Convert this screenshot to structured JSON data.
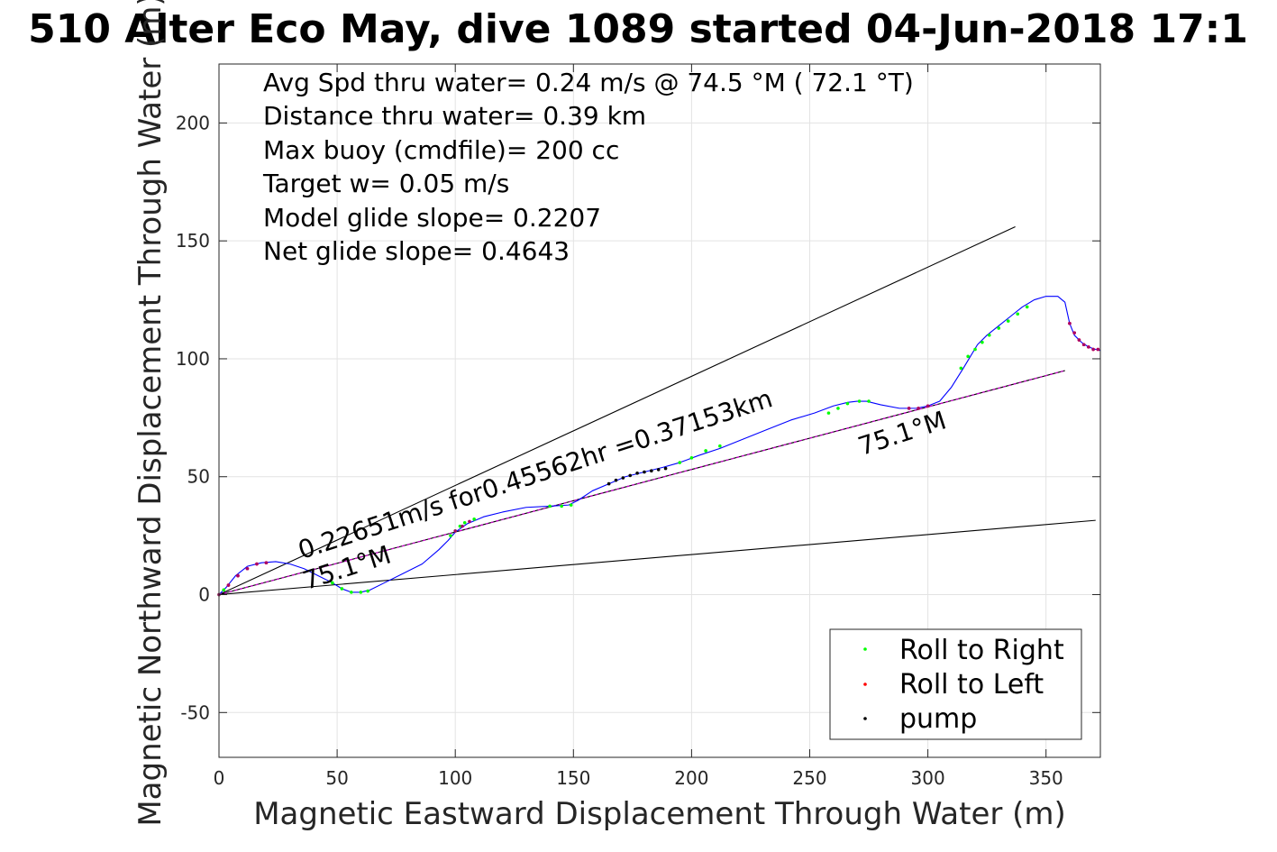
{
  "chart_data": {
    "type": "line",
    "title": "510 Alter Eco May, dive 1089 started 04-Jun-2018 17:1",
    "xlabel": "Magnetic Eastward Displacement Through Water (m)",
    "ylabel": "Magnetic Northward Displacement Through Water (m)",
    "xlim": [
      0,
      373
    ],
    "ylim": [
      -69,
      225
    ],
    "xticks": [
      0,
      50,
      100,
      150,
      200,
      250,
      300,
      350
    ],
    "yticks": [
      -50,
      0,
      50,
      100,
      150,
      200
    ],
    "grid": true,
    "info_lines": [
      "Avg Spd thru water=  0.24 m/s @  74.5 °M ( 72.1 °T)",
      "Distance thru water=  0.39 km",
      "Max buoy (cmdfile)= 200 cc",
      "Target w= 0.05 m/s",
      "Model glide slope= 0.2207",
      "Net glide slope= 0.4643"
    ],
    "annotations": [
      {
        "text": "0.22651m/s for0.45562hr =0.37153km",
        "x": 35,
        "y": 15,
        "rotation_deg": -18
      },
      {
        "text": "75.1°M",
        "x": 37,
        "y": 2,
        "rotation_deg": -18
      },
      {
        "text": "75.1°M",
        "x": 272,
        "y": 59,
        "rotation_deg": -18
      }
    ],
    "reference_lines": [
      {
        "name": "upper bound",
        "x": [
          0,
          337
        ],
        "y": [
          0,
          156
        ],
        "color": "#000000"
      },
      {
        "name": "lower bound",
        "x": [
          0,
          371
        ],
        "y": [
          0,
          31.5
        ],
        "color": "#000000"
      },
      {
        "name": "heading",
        "x": [
          0,
          358
        ],
        "y": [
          0,
          95
        ],
        "color": "#000000"
      },
      {
        "name": "heading overlay",
        "x": [
          0,
          358
        ],
        "y": [
          0,
          95
        ],
        "color": "#cc00cc"
      }
    ],
    "track": {
      "color": "#0000ff",
      "x": [
        0,
        3,
        7,
        12,
        18,
        24,
        30,
        36,
        42,
        48,
        52,
        56,
        60,
        64,
        70,
        78,
        86,
        93,
        97,
        100,
        105,
        112,
        120,
        130,
        140,
        148,
        152,
        158,
        165,
        172,
        180,
        188,
        195,
        203,
        212,
        222,
        232,
        242,
        252,
        260,
        266,
        270,
        274,
        280,
        288,
        295,
        300,
        305,
        310,
        315,
        318,
        321,
        325,
        330,
        335,
        340,
        345,
        350,
        355,
        358,
        360,
        362,
        365,
        368,
        371,
        373
      ],
      "y": [
        0,
        3,
        8,
        12,
        13.5,
        14,
        13,
        11,
        8,
        5,
        2.5,
        1,
        1,
        2,
        5,
        9,
        13,
        19,
        23,
        26.5,
        30,
        33,
        35,
        37,
        37.5,
        38,
        40,
        44,
        47,
        50,
        52,
        54,
        56,
        59,
        62,
        66,
        70,
        74,
        77,
        80,
        81.5,
        82,
        82,
        80.5,
        79,
        79,
        80,
        82,
        88,
        96,
        101,
        106,
        110,
        114,
        118,
        122,
        125,
        126.5,
        126.5,
        124,
        115,
        110,
        107,
        105,
        104,
        103.5
      ]
    },
    "series": [
      {
        "name": "Roll to Right",
        "color": "#00ff00",
        "x": [
          0,
          2,
          48,
          52,
          56,
          60,
          63,
          98,
          100,
          102,
          104,
          108,
          140,
          145,
          149,
          195,
          200,
          206,
          212,
          258,
          262,
          266,
          271,
          275,
          314,
          317,
          320,
          323,
          326,
          330,
          334,
          338,
          342
        ],
        "y": [
          0,
          2,
          5,
          2.5,
          1,
          1,
          1.5,
          25,
          27,
          29,
          30.5,
          32,
          37.5,
          37.5,
          38,
          56,
          58,
          61,
          63,
          77,
          79,
          81,
          82,
          82,
          96,
          101,
          104,
          107,
          110,
          113,
          116,
          119,
          122
        ]
      },
      {
        "name": "Roll to Left",
        "color": "#ff0000",
        "x": [
          4,
          8,
          12,
          16,
          20,
          360,
          362,
          364,
          366,
          368,
          370,
          372,
          292,
          296,
          300
        ],
        "y": [
          4,
          8,
          11,
          13,
          13.5,
          115,
          111,
          108,
          106,
          105,
          104,
          104,
          79,
          79,
          80
        ]
      },
      {
        "name": "pump",
        "color": "#000000",
        "x": [
          165,
          168,
          171,
          174,
          177,
          180,
          183,
          186,
          189
        ],
        "y": [
          47,
          48.5,
          49.5,
          50.5,
          51.5,
          52,
          52.5,
          53,
          53.5
        ]
      }
    ],
    "magenta_points": {
      "color": "#aa0066",
      "x": [
        0,
        4,
        8,
        12,
        16,
        20,
        100,
        103,
        106,
        360,
        362,
        364,
        366,
        368,
        370,
        372,
        292,
        296,
        300
      ],
      "y": [
        0,
        4,
        8,
        11,
        13,
        13.5,
        27,
        29,
        31,
        115,
        111,
        108,
        106,
        105,
        104,
        104,
        79,
        79,
        80
      ]
    },
    "legend": {
      "placement": "bottom-right",
      "entries": [
        {
          "label": "Roll to Right",
          "color": "#00ff00"
        },
        {
          "label": "Roll to Left",
          "color": "#ff0000"
        },
        {
          "label": "pump",
          "color": "#000000"
        }
      ]
    }
  }
}
